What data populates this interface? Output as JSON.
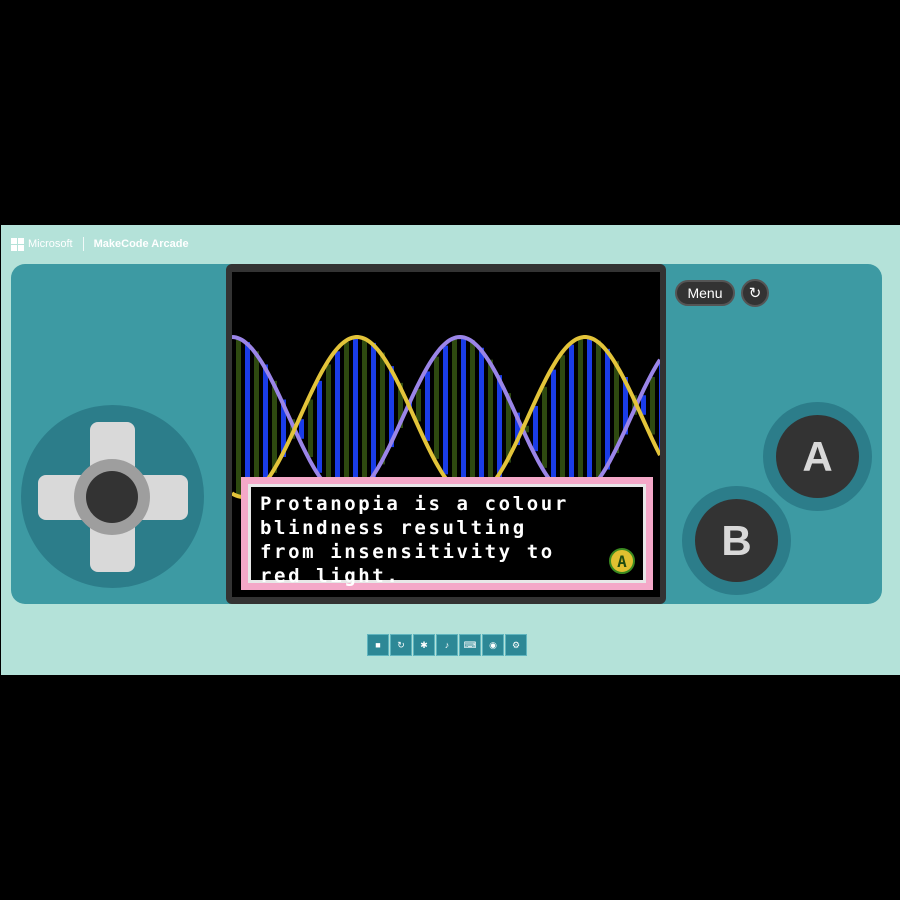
{
  "header": {
    "microsoft_label": "Microsoft",
    "app_label": "MakeCode Arcade"
  },
  "controls": {
    "menu_label": "Menu",
    "restart_icon": "↻",
    "button_a_label": "A",
    "button_b_label": "B"
  },
  "game": {
    "dialog_text": "Protanopia is a colour\nblindness resulting\nfrom insensitivity to\nred light.",
    "dialog_badge": "A"
  },
  "toolbar": {
    "stop_icon": "■",
    "restart_icon": "↻",
    "debug_icon": "✱",
    "sound_icon": "♪",
    "keyboard_icon": "⌨",
    "screenshot_icon": "◉",
    "settings_icon": "⚙"
  },
  "colors": {
    "frame_bg": "#b4e2d9",
    "console_bg": "#3d9aa3",
    "wave_purple": "#9b85e8",
    "wave_yellow": "#e3c43a",
    "stripe_blue": "#1a3ce8",
    "stripe_green": "#2e4a10",
    "dialog_border": "#f4a8c8"
  }
}
